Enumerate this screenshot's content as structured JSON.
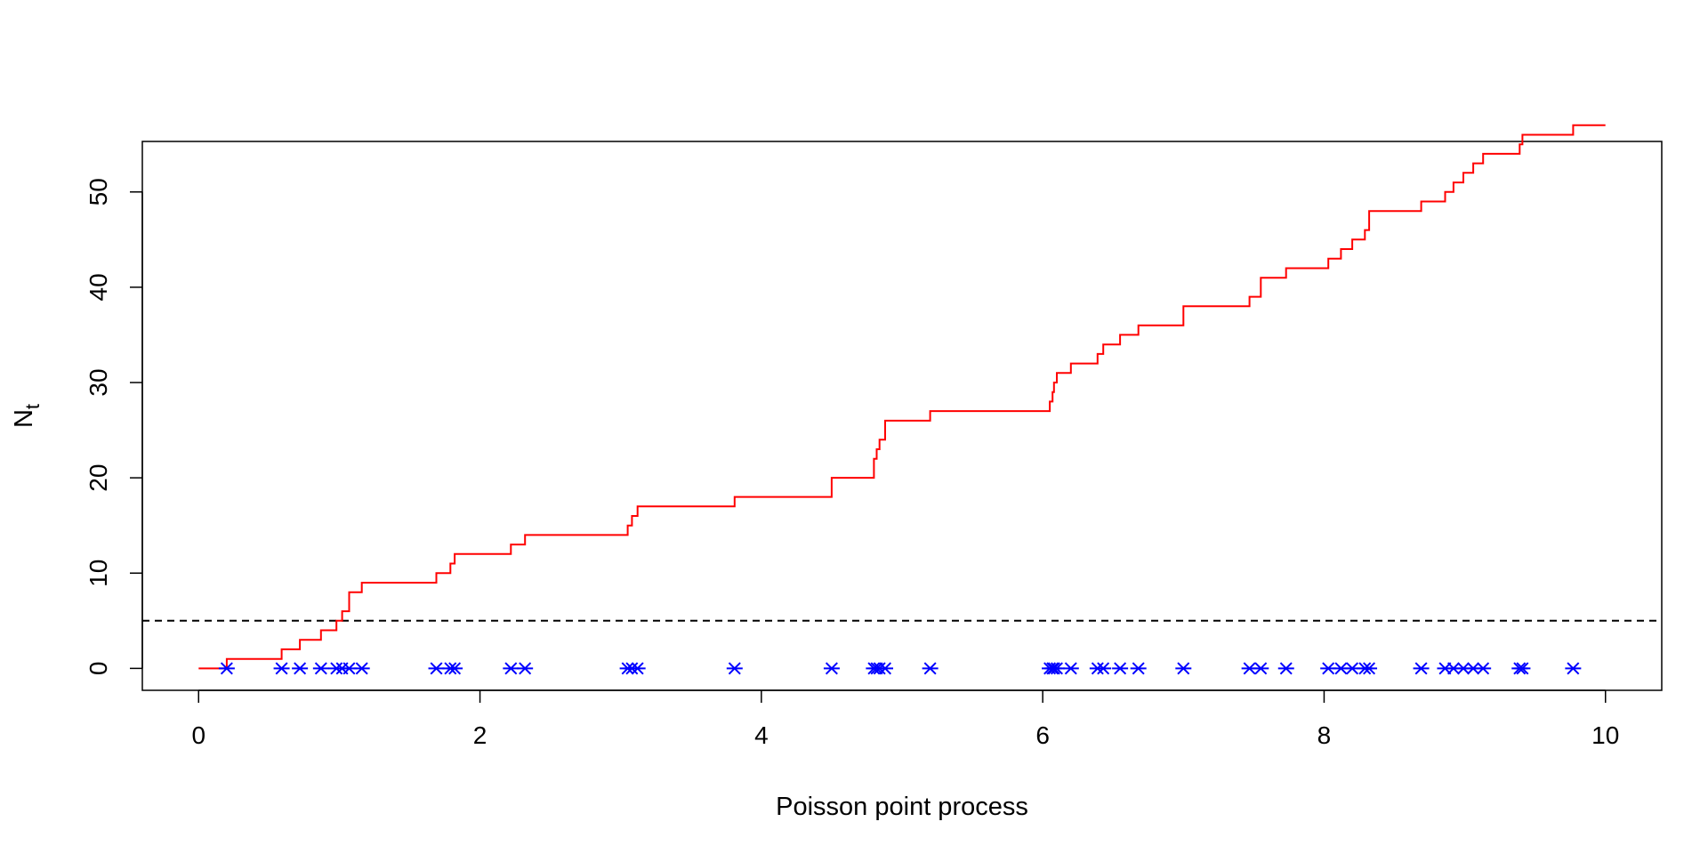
{
  "chart_data": {
    "type": "line",
    "xlabel": "Poisson point process",
    "ylabel": "N",
    "ylabel_subscript": "t",
    "xlim": [
      -0.4,
      10.4
    ],
    "ylim": [
      -2.3,
      55.3
    ],
    "xticks": [
      0,
      2,
      4,
      6,
      8,
      10
    ],
    "yticks": [
      0,
      10,
      20,
      30,
      40,
      50
    ],
    "grid": false,
    "box": true,
    "reference_line": {
      "y": 5,
      "style": "dashed",
      "color": "#000000"
    },
    "series": [
      {
        "kind": "step",
        "color": "#ff0000",
        "jump_times": [
          0.2,
          0.59,
          0.72,
          0.87,
          0.98,
          1.02,
          1.07,
          1.16,
          1.69,
          1.79,
          1.82,
          2.22,
          2.32,
          3.05,
          3.08,
          3.12,
          3.81,
          4.5,
          4.8,
          4.82,
          4.84,
          4.88,
          5.2,
          6.05,
          6.07,
          6.08,
          6.1,
          6.2,
          6.39,
          6.43,
          6.55,
          6.68,
          7.0,
          7.47,
          7.55,
          7.73,
          8.03,
          8.12,
          8.2,
          8.29,
          8.32,
          8.69,
          8.86,
          8.92,
          8.99,
          9.06,
          9.13,
          9.39,
          9.41,
          9.77
        ],
        "jump_sizes": [
          1,
          1,
          1,
          1,
          1,
          1,
          2,
          1,
          1,
          1,
          1,
          1,
          1,
          1,
          1,
          1,
          1,
          2,
          2,
          1,
          1,
          2,
          1,
          1,
          1,
          1,
          1,
          1,
          1,
          1,
          1,
          1,
          2,
          1,
          2,
          1,
          1,
          1,
          1,
          1,
          2,
          1,
          1,
          1,
          1,
          1,
          1,
          1,
          1,
          1
        ],
        "x_end": 10.0
      },
      {
        "kind": "points",
        "color": "#0000ff",
        "marker": "asterisk",
        "y": 0,
        "x": [
          0.2,
          0.59,
          0.72,
          0.87,
          0.98,
          1.02,
          1.07,
          1.16,
          1.69,
          1.79,
          1.82,
          2.22,
          2.32,
          3.05,
          3.08,
          3.12,
          3.81,
          4.5,
          4.8,
          4.82,
          4.84,
          4.88,
          5.2,
          6.05,
          6.07,
          6.08,
          6.1,
          6.2,
          6.39,
          6.43,
          6.55,
          6.68,
          7.0,
          7.47,
          7.55,
          7.73,
          8.03,
          8.12,
          8.2,
          8.29,
          8.32,
          8.69,
          8.86,
          8.92,
          8.99,
          9.06,
          9.13,
          9.39,
          9.41,
          9.77
        ]
      }
    ]
  }
}
